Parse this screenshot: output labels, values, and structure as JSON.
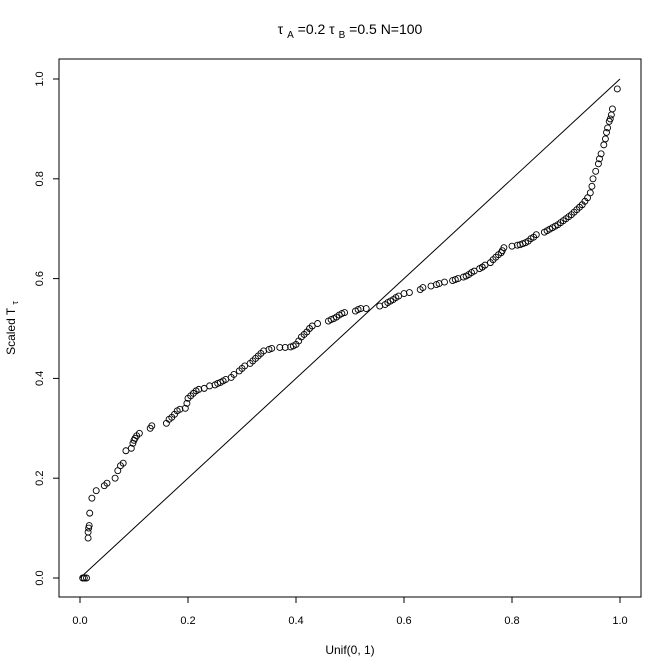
{
  "chart_data": {
    "type": "scatter",
    "title": {
      "tau": "τ",
      "a_sub": "A",
      "a_value": "=0.2",
      "b_sub": "B",
      "b_value": "=0.5",
      "n_text": " N=100"
    },
    "xlabel": "Unif(0, 1)",
    "ylabel": {
      "main": "Scaled T",
      "sub": "τ"
    },
    "xlim": [
      0.0,
      1.0
    ],
    "ylim": [
      0.0,
      1.0
    ],
    "xticks": [
      0.0,
      0.2,
      0.4,
      0.6,
      0.8,
      1.0
    ],
    "yticks": [
      0.0,
      0.2,
      0.4,
      0.6,
      0.8,
      1.0
    ],
    "xtick_labels": [
      "0.0",
      "0.2",
      "0.4",
      "0.6",
      "0.8",
      "1.0"
    ],
    "ytick_labels": [
      "0.0",
      "0.2",
      "0.4",
      "0.6",
      "0.8",
      "1.0"
    ],
    "grid": false,
    "reference_line": [
      [
        0.0,
        0.0
      ],
      [
        1.0,
        1.0
      ]
    ],
    "marker_color": "#000000",
    "line_color": "#000000",
    "points": [
      [
        0.005,
        0.0
      ],
      [
        0.008,
        0.0
      ],
      [
        0.012,
        0.0
      ],
      [
        0.015,
        0.08
      ],
      [
        0.015,
        0.092
      ],
      [
        0.016,
        0.1
      ],
      [
        0.017,
        0.105
      ],
      [
        0.018,
        0.13
      ],
      [
        0.022,
        0.16
      ],
      [
        0.03,
        0.175
      ],
      [
        0.045,
        0.185
      ],
      [
        0.05,
        0.19
      ],
      [
        0.065,
        0.2
      ],
      [
        0.07,
        0.215
      ],
      [
        0.075,
        0.225
      ],
      [
        0.08,
        0.23
      ],
      [
        0.085,
        0.255
      ],
      [
        0.095,
        0.26
      ],
      [
        0.098,
        0.27
      ],
      [
        0.1,
        0.276
      ],
      [
        0.102,
        0.28
      ],
      [
        0.105,
        0.285
      ],
      [
        0.11,
        0.29
      ],
      [
        0.13,
        0.3
      ],
      [
        0.133,
        0.305
      ],
      [
        0.16,
        0.31
      ],
      [
        0.165,
        0.318
      ],
      [
        0.17,
        0.322
      ],
      [
        0.175,
        0.328
      ],
      [
        0.18,
        0.335
      ],
      [
        0.185,
        0.338
      ],
      [
        0.195,
        0.34
      ],
      [
        0.198,
        0.35
      ],
      [
        0.2,
        0.36
      ],
      [
        0.205,
        0.365
      ],
      [
        0.21,
        0.37
      ],
      [
        0.215,
        0.375
      ],
      [
        0.22,
        0.378
      ],
      [
        0.23,
        0.38
      ],
      [
        0.24,
        0.385
      ],
      [
        0.25,
        0.387
      ],
      [
        0.255,
        0.39
      ],
      [
        0.26,
        0.392
      ],
      [
        0.265,
        0.395
      ],
      [
        0.27,
        0.398
      ],
      [
        0.28,
        0.402
      ],
      [
        0.285,
        0.408
      ],
      [
        0.295,
        0.415
      ],
      [
        0.3,
        0.42
      ],
      [
        0.305,
        0.425
      ],
      [
        0.315,
        0.43
      ],
      [
        0.32,
        0.435
      ],
      [
        0.325,
        0.44
      ],
      [
        0.33,
        0.445
      ],
      [
        0.335,
        0.45
      ],
      [
        0.34,
        0.455
      ],
      [
        0.35,
        0.458
      ],
      [
        0.355,
        0.46
      ],
      [
        0.37,
        0.462
      ],
      [
        0.38,
        0.462
      ],
      [
        0.39,
        0.463
      ],
      [
        0.395,
        0.465
      ],
      [
        0.4,
        0.468
      ],
      [
        0.405,
        0.475
      ],
      [
        0.41,
        0.483
      ],
      [
        0.415,
        0.488
      ],
      [
        0.42,
        0.493
      ],
      [
        0.425,
        0.5
      ],
      [
        0.43,
        0.505
      ],
      [
        0.44,
        0.51
      ],
      [
        0.46,
        0.515
      ],
      [
        0.465,
        0.518
      ],
      [
        0.47,
        0.52
      ],
      [
        0.475,
        0.523
      ],
      [
        0.48,
        0.527
      ],
      [
        0.485,
        0.53
      ],
      [
        0.49,
        0.532
      ],
      [
        0.51,
        0.535
      ],
      [
        0.515,
        0.538
      ],
      [
        0.52,
        0.54
      ],
      [
        0.53,
        0.54
      ],
      [
        0.555,
        0.545
      ],
      [
        0.565,
        0.548
      ],
      [
        0.57,
        0.552
      ],
      [
        0.575,
        0.555
      ],
      [
        0.58,
        0.558
      ],
      [
        0.585,
        0.562
      ],
      [
        0.59,
        0.565
      ],
      [
        0.6,
        0.57
      ],
      [
        0.61,
        0.572
      ],
      [
        0.63,
        0.578
      ],
      [
        0.635,
        0.582
      ],
      [
        0.65,
        0.585
      ],
      [
        0.66,
        0.588
      ],
      [
        0.665,
        0.59
      ],
      [
        0.675,
        0.593
      ],
      [
        0.69,
        0.596
      ],
      [
        0.695,
        0.598
      ],
      [
        0.7,
        0.6
      ],
      [
        0.71,
        0.603
      ],
      [
        0.715,
        0.605
      ],
      [
        0.72,
        0.608
      ],
      [
        0.725,
        0.612
      ],
      [
        0.73,
        0.615
      ],
      [
        0.74,
        0.62
      ],
      [
        0.745,
        0.623
      ],
      [
        0.75,
        0.627
      ],
      [
        0.76,
        0.632
      ],
      [
        0.765,
        0.638
      ],
      [
        0.77,
        0.643
      ],
      [
        0.775,
        0.648
      ],
      [
        0.78,
        0.652
      ],
      [
        0.782,
        0.656
      ],
      [
        0.785,
        0.662
      ],
      [
        0.8,
        0.665
      ],
      [
        0.81,
        0.667
      ],
      [
        0.815,
        0.668
      ],
      [
        0.82,
        0.67
      ],
      [
        0.825,
        0.672
      ],
      [
        0.83,
        0.675
      ],
      [
        0.835,
        0.68
      ],
      [
        0.84,
        0.683
      ],
      [
        0.845,
        0.688
      ],
      [
        0.86,
        0.693
      ],
      [
        0.865,
        0.696
      ],
      [
        0.87,
        0.699
      ],
      [
        0.875,
        0.702
      ],
      [
        0.88,
        0.705
      ],
      [
        0.885,
        0.708
      ],
      [
        0.89,
        0.712
      ],
      [
        0.895,
        0.716
      ],
      [
        0.9,
        0.72
      ],
      [
        0.905,
        0.724
      ],
      [
        0.91,
        0.728
      ],
      [
        0.915,
        0.733
      ],
      [
        0.92,
        0.738
      ],
      [
        0.925,
        0.743
      ],
      [
        0.93,
        0.748
      ],
      [
        0.935,
        0.755
      ],
      [
        0.94,
        0.762
      ],
      [
        0.945,
        0.772
      ],
      [
        0.948,
        0.785
      ],
      [
        0.95,
        0.8
      ],
      [
        0.955,
        0.815
      ],
      [
        0.96,
        0.83
      ],
      [
        0.962,
        0.84
      ],
      [
        0.965,
        0.85
      ],
      [
        0.97,
        0.868
      ],
      [
        0.973,
        0.88
      ],
      [
        0.975,
        0.893
      ],
      [
        0.977,
        0.902
      ],
      [
        0.98,
        0.915
      ],
      [
        0.982,
        0.92
      ],
      [
        0.984,
        0.928
      ],
      [
        0.986,
        0.94
      ],
      [
        0.995,
        0.98
      ]
    ]
  }
}
